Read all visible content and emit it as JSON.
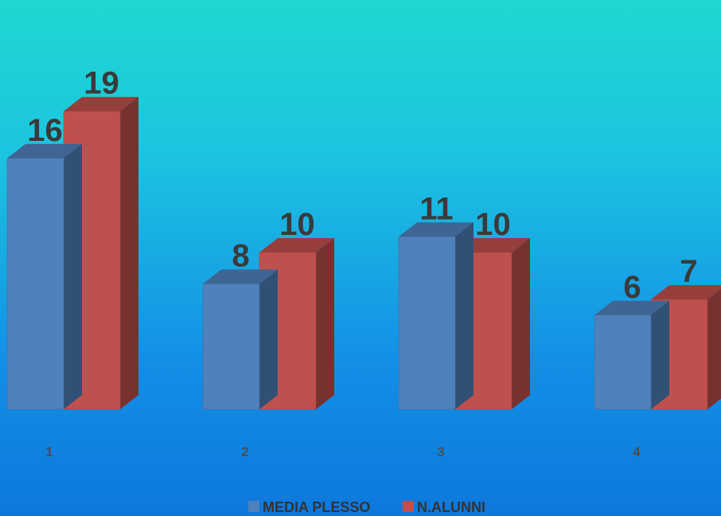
{
  "chart_data": {
    "type": "bar",
    "categories": [
      "1",
      "2",
      "3",
      "4"
    ],
    "series": [
      {
        "name": "MEDIA PLESSO",
        "values": [
          16,
          8,
          11,
          6
        ],
        "color": "#4f81bd"
      },
      {
        "name": "N.ALUNNI",
        "values": [
          19,
          10,
          10,
          7
        ],
        "color": "#c0504d"
      }
    ],
    "ylim": [
      0,
      20
    ],
    "grid": false,
    "legend": "bottom",
    "title": "",
    "xlabel": "",
    "ylabel": "",
    "three_d": true
  }
}
